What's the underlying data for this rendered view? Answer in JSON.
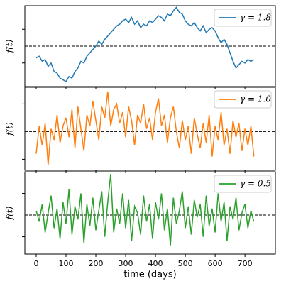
{
  "chart_data": [
    {
      "type": "line",
      "ylabel": "f(t)",
      "legend": "upper right",
      "hline": 0,
      "x": [
        0,
        10,
        20,
        30,
        40,
        50,
        60,
        70,
        80,
        90,
        100,
        110,
        120,
        130,
        140,
        150,
        160,
        170,
        180,
        190,
        200,
        210,
        220,
        230,
        240,
        250,
        260,
        270,
        280,
        290,
        300,
        310,
        320,
        330,
        340,
        350,
        360,
        370,
        380,
        390,
        400,
        410,
        420,
        430,
        440,
        450,
        460,
        470,
        480,
        490,
        500,
        510,
        520,
        530,
        540,
        550,
        560,
        570,
        580,
        590,
        600,
        610,
        620,
        630,
        640,
        650,
        660,
        670,
        680,
        690,
        700,
        710,
        720,
        730
      ],
      "series": [
        {
          "name": "γ = 1.8",
          "color": "#1f77b4",
          "values": [
            -0.7,
            -0.6,
            -0.9,
            -0.8,
            -1.2,
            -1.0,
            -1.5,
            -1.6,
            -1.9,
            -2.0,
            -2.1,
            -1.8,
            -1.9,
            -1.5,
            -1.3,
            -0.9,
            -1.0,
            -0.6,
            -0.4,
            -0.2,
            0.0,
            0.3,
            0.1,
            0.4,
            0.6,
            0.8,
            1.0,
            1.2,
            1.3,
            1.5,
            1.6,
            1.4,
            1.7,
            1.3,
            1.5,
            1.1,
            1.3,
            1.2,
            1.5,
            1.4,
            1.6,
            1.8,
            1.7,
            1.5,
            1.9,
            1.8,
            2.1,
            2.3,
            2.0,
            1.9,
            1.5,
            1.3,
            1.2,
            1.4,
            1.1,
            0.9,
            1.2,
            0.8,
            1.0,
            1.1,
            0.9,
            0.5,
            0.2,
            0.4,
            0.1,
            -0.4,
            -0.9,
            -1.3,
            -1.1,
            -0.9,
            -1.0,
            -0.8,
            -0.9,
            -0.8
          ]
        }
      ],
      "xlim": [
        -38,
        802
      ],
      "ylim": [
        -2.4,
        2.4
      ],
      "yticks": [
        -1,
        1
      ]
    },
    {
      "type": "line",
      "ylabel": "f(t)",
      "legend": "upper right",
      "hline": 0,
      "x": [
        0,
        10,
        20,
        30,
        40,
        50,
        60,
        70,
        80,
        90,
        100,
        110,
        120,
        130,
        140,
        150,
        160,
        170,
        180,
        190,
        200,
        210,
        220,
        230,
        240,
        250,
        260,
        270,
        280,
        290,
        300,
        310,
        320,
        330,
        340,
        350,
        360,
        370,
        380,
        390,
        400,
        410,
        420,
        430,
        440,
        450,
        460,
        470,
        480,
        490,
        500,
        510,
        520,
        530,
        540,
        550,
        560,
        570,
        580,
        590,
        600,
        610,
        620,
        630,
        640,
        650,
        660,
        670,
        680,
        690,
        700,
        710,
        720,
        730
      ],
      "series": [
        {
          "name": "γ = 1.0",
          "color": "#ff7f0e",
          "values": [
            -0.8,
            0.2,
            -0.5,
            0.3,
            -1.2,
            0.1,
            -0.3,
            0.6,
            -0.4,
            0.2,
            0.5,
            -0.2,
            0.8,
            -0.6,
            0.9,
            0.1,
            -0.7,
            0.6,
            0.2,
            1.1,
            0.4,
            -0.3,
            0.9,
            0.5,
            1.45,
            0.2,
            0.8,
            1.0,
            0.3,
            0.7,
            -0.2,
            0.9,
            0.4,
            -0.5,
            0.6,
            0.3,
            1.0,
            0.1,
            0.5,
            -0.3,
            0.7,
            1.2,
            0.2,
            0.6,
            -0.4,
            0.5,
            0.9,
            0.0,
            -0.6,
            0.4,
            -0.3,
            0.2,
            -0.8,
            0.5,
            -0.1,
            -0.6,
            0.3,
            -0.4,
            0.6,
            -0.9,
            0.2,
            -0.3,
            0.7,
            -0.5,
            0.1,
            -0.8,
            0.4,
            -0.2,
            0.3,
            -0.7,
            0.1,
            -0.5,
            0.2,
            -0.9
          ]
        }
      ],
      "xlim": [
        -38,
        802
      ],
      "ylim": [
        -1.4,
        1.6
      ],
      "yticks": [
        -1,
        1
      ]
    },
    {
      "type": "line",
      "ylabel": "f(t)",
      "xlabel": "time (days)",
      "legend": "upper right",
      "hline": 0,
      "x": [
        0,
        10,
        20,
        30,
        40,
        50,
        60,
        70,
        80,
        90,
        100,
        110,
        120,
        130,
        140,
        150,
        160,
        170,
        180,
        190,
        200,
        210,
        220,
        230,
        240,
        250,
        260,
        270,
        280,
        290,
        300,
        310,
        320,
        330,
        340,
        350,
        360,
        370,
        380,
        390,
        400,
        410,
        420,
        430,
        440,
        450,
        460,
        470,
        480,
        490,
        500,
        510,
        520,
        530,
        540,
        550,
        560,
        570,
        580,
        590,
        600,
        610,
        620,
        630,
        640,
        650,
        660,
        670,
        680,
        690,
        700,
        710,
        720,
        730
      ],
      "series": [
        {
          "name": "γ = 0.5",
          "color": "#2ca02c",
          "values": [
            0.2,
            -0.3,
            0.5,
            -0.8,
            0.1,
            0.9,
            -0.6,
            0.3,
            -1.1,
            0.6,
            -0.4,
            1.2,
            -0.9,
            0.4,
            -0.2,
            1.0,
            -1.3,
            0.5,
            -0.5,
            0.8,
            -0.7,
            0.2,
            1.1,
            -1.0,
            0.6,
            1.9,
            -0.8,
            0.3,
            -0.4,
            1.0,
            -0.6,
            0.7,
            -1.2,
            0.4,
            0.1,
            -0.9,
            0.9,
            -0.3,
            0.5,
            -1.1,
            0.6,
            -0.2,
            1.0,
            -0.7,
            0.3,
            -1.4,
            0.8,
            -0.4,
            0.2,
            1.1,
            -0.6,
            0.4,
            -0.9,
            0.7,
            -0.1,
            0.5,
            -1.0,
            0.9,
            -0.5,
            0.3,
            -0.8,
            1.0,
            -0.3,
            0.6,
            -1.2,
            0.4,
            -0.2,
            0.8,
            -0.7,
            0.1,
            0.5,
            -0.6,
            0.2,
            -0.3
          ]
        }
      ],
      "xlim": [
        -38,
        802
      ],
      "ylim": [
        -1.8,
        2.0
      ],
      "yticks": [
        -1,
        1
      ],
      "xticks": [
        0,
        100,
        200,
        300,
        400,
        500,
        600,
        700
      ]
    }
  ]
}
